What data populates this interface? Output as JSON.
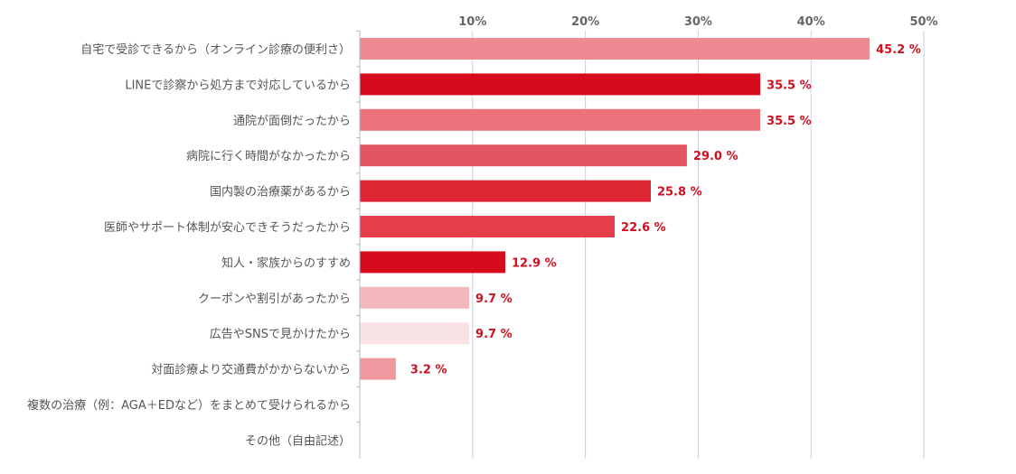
{
  "chart_data": {
    "type": "bar",
    "orientation": "horizontal",
    "title": "",
    "xlabel": "",
    "ylabel": "",
    "xlim": [
      0,
      50
    ],
    "ticks": [
      {
        "value": 10,
        "label": "10%"
      },
      {
        "value": 20,
        "label": "20%"
      },
      {
        "value": 30,
        "label": "30%"
      },
      {
        "value": 40,
        "label": "40%"
      },
      {
        "value": 50,
        "label": "50%"
      }
    ],
    "grid": true,
    "legend": "none",
    "categories": [
      "自宅で受診できるから（オンライン診療の便利さ）",
      "LINEで診察から処方まで対応しているから",
      "通院が面倒だったから",
      "病院に行く時間がなかったから",
      "国内製の治療薬があるから",
      "医師やサポート体制が安心できそうだったから",
      "知人・家族からのすすめ",
      "クーポンや割引があったから",
      "広告やSNSで見かけたから",
      "対面診療より交通費がかからないから",
      "複数の治療（例：AGA＋EDなど）をまとめて受けられるから",
      "その他（自由記述）"
    ],
    "values": [
      45.2,
      35.5,
      35.5,
      29.0,
      25.8,
      22.6,
      12.9,
      9.7,
      9.7,
      3.2,
      null,
      null
    ],
    "value_labels": [
      "45.2 %",
      "35.5 %",
      "35.5 %",
      "29.0 %",
      "25.8 %",
      "22.6 %",
      "12.9 %",
      "9.7 %",
      "9.7 %",
      "3.2 %",
      "",
      ""
    ],
    "colors": [
      "#ee8a91",
      "#d80b1c",
      "#ec727b",
      "#e35661",
      "#de2533",
      "#e43e4a",
      "#d80b1c",
      "#f2b8bc",
      "#f9e2e3",
      "#ef9aa0",
      "",
      ""
    ],
    "value_label_color": "#d10f1f",
    "grid_color": "#c9d1de",
    "axis_color": "#b3bccd"
  }
}
